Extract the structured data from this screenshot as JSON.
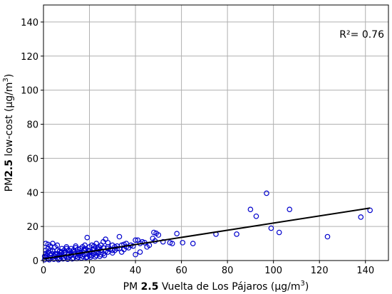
{
  "chart_data": {
    "type": "scatter",
    "title": "",
    "xlabel": {
      "prefix": "PM ",
      "bold": "2.5",
      "suffix": " Vuelta de Los Pájaros (µg/m",
      "sup": "3",
      "end": ")"
    },
    "ylabel": {
      "prefix": "PM",
      "bold": "2.5",
      "suffix": " low-cost (µg/m",
      "sup": "3",
      "end": ")"
    },
    "xlim": [
      0,
      150
    ],
    "ylim": [
      0,
      150
    ],
    "xticks": [
      0,
      20,
      40,
      60,
      80,
      100,
      120,
      140
    ],
    "yticks": [
      0,
      20,
      40,
      60,
      80,
      100,
      120,
      140
    ],
    "grid": true,
    "annotation": "R²= 0.76",
    "marker_color": "#0000cc",
    "line_color": "#000000",
    "fit_line": {
      "x": [
        0,
        142
      ],
      "y": [
        1.0,
        30.8
      ]
    },
    "points": [
      [
        97,
        39.5
      ],
      [
        90,
        30
      ],
      [
        107,
        30
      ],
      [
        92.5,
        26
      ],
      [
        142,
        29.5
      ],
      [
        138,
        25.5
      ],
      [
        99,
        19
      ],
      [
        102.5,
        16.5
      ],
      [
        123.5,
        14
      ],
      [
        84,
        15.5
      ],
      [
        75,
        15.5
      ],
      [
        58,
        15.8
      ],
      [
        65,
        10
      ],
      [
        60.5,
        10.5
      ],
      [
        49,
        16
      ],
      [
        48,
        16.5
      ],
      [
        50,
        15
      ],
      [
        47.5,
        13
      ],
      [
        48.5,
        11.5
      ],
      [
        52,
        11
      ],
      [
        55,
        10.5
      ],
      [
        56,
        10
      ],
      [
        40,
        12
      ],
      [
        41,
        12
      ],
      [
        42,
        10
      ],
      [
        43,
        11
      ],
      [
        44,
        10.5
      ],
      [
        39,
        8.5
      ],
      [
        38,
        9
      ],
      [
        40,
        3.5
      ],
      [
        42,
        5
      ],
      [
        46,
        9
      ],
      [
        45,
        8
      ],
      [
        33,
        14
      ],
      [
        35,
        9.5
      ],
      [
        36,
        8
      ],
      [
        34,
        5
      ],
      [
        32,
        7
      ],
      [
        31,
        8
      ],
      [
        30,
        6
      ],
      [
        27,
        12.5
      ],
      [
        28,
        10.5
      ],
      [
        26,
        11
      ],
      [
        25,
        9
      ],
      [
        24,
        8
      ],
      [
        23,
        10
      ],
      [
        22,
        7
      ],
      [
        21,
        9
      ],
      [
        20,
        8
      ],
      [
        19,
        13.5
      ],
      [
        18,
        7
      ],
      [
        18,
        6
      ],
      [
        17,
        8
      ],
      [
        16,
        7
      ],
      [
        15,
        6.5
      ],
      [
        14,
        7.5
      ],
      [
        13,
        6
      ],
      [
        12,
        7
      ],
      [
        11,
        6
      ],
      [
        10,
        7
      ],
      [
        9,
        6
      ],
      [
        8,
        7
      ],
      [
        7,
        5.5
      ],
      [
        6,
        9
      ],
      [
        5,
        8
      ],
      [
        4,
        10
      ],
      [
        3,
        6
      ],
      [
        2,
        5
      ],
      [
        1,
        4
      ],
      [
        1,
        10
      ],
      [
        3,
        3
      ],
      [
        5,
        4
      ],
      [
        7,
        3.5
      ],
      [
        9,
        4.5
      ],
      [
        11,
        4
      ],
      [
        13,
        5
      ],
      [
        15,
        4
      ],
      [
        17,
        5
      ],
      [
        19,
        4.5
      ],
      [
        21,
        5
      ],
      [
        23,
        5.5
      ],
      [
        25,
        6
      ],
      [
        27,
        5.5
      ],
      [
        29,
        6.5
      ],
      [
        31,
        6
      ],
      [
        33,
        7
      ],
      [
        35,
        6.5
      ],
      [
        37,
        7.5
      ],
      [
        2,
        1
      ],
      [
        4,
        2
      ],
      [
        6,
        1.5
      ],
      [
        8,
        2.5
      ],
      [
        10,
        2
      ],
      [
        12,
        3
      ],
      [
        14,
        2.5
      ],
      [
        16,
        3
      ],
      [
        18,
        3.5
      ],
      [
        20,
        3
      ],
      [
        22,
        4
      ],
      [
        24,
        4.5
      ],
      [
        26,
        4
      ],
      [
        28,
        5
      ],
      [
        30,
        4.5
      ],
      [
        1,
        2
      ],
      [
        3,
        1.5
      ],
      [
        5,
        2.5
      ],
      [
        7,
        1
      ],
      [
        9,
        1.5
      ],
      [
        11,
        2
      ],
      [
        13,
        1.5
      ],
      [
        15,
        2
      ],
      [
        17,
        2.5
      ],
      [
        19,
        2
      ],
      [
        21,
        3
      ],
      [
        23,
        3
      ],
      [
        25,
        3.5
      ],
      [
        0.5,
        0.5
      ],
      [
        2.5,
        0.5
      ],
      [
        4.5,
        0.8
      ],
      [
        6.5,
        0.5
      ],
      [
        8.5,
        1
      ],
      [
        10.5,
        0.8
      ],
      [
        12.5,
        1
      ],
      [
        14.5,
        1.2
      ],
      [
        16.5,
        1.5
      ],
      [
        18.5,
        1.8
      ],
      [
        20.5,
        2
      ],
      [
        22.5,
        2.2
      ],
      [
        24.5,
        2.5
      ],
      [
        26.5,
        3
      ],
      [
        1.5,
        3
      ],
      [
        3.5,
        4
      ],
      [
        5.5,
        3.5
      ],
      [
        7.5,
        4.5
      ],
      [
        9.5,
        5
      ],
      [
        11.5,
        5.5
      ],
      [
        13.5,
        4
      ],
      [
        15.5,
        5
      ],
      [
        17.5,
        6
      ],
      [
        19.5,
        6
      ],
      [
        21.5,
        6.5
      ],
      [
        23.5,
        7
      ],
      [
        2,
        7
      ],
      [
        6,
        6
      ],
      [
        10,
        8
      ],
      [
        14,
        8.5
      ],
      [
        18,
        9
      ],
      [
        22,
        8.5
      ],
      [
        26,
        7.5
      ],
      [
        28,
        8
      ],
      [
        30,
        9
      ],
      [
        32,
        8.5
      ],
      [
        34,
        9
      ],
      [
        36,
        10
      ],
      [
        8,
        5
      ],
      [
        12,
        4.5
      ],
      [
        16,
        4.5
      ],
      [
        20,
        5.5
      ],
      [
        24,
        6.5
      ],
      [
        28,
        7
      ],
      [
        3,
        8.5
      ],
      [
        4,
        5.5
      ],
      [
        6,
        4
      ],
      [
        0.5,
        2.5
      ],
      [
        1,
        6
      ],
      [
        2,
        9.5
      ]
    ]
  }
}
